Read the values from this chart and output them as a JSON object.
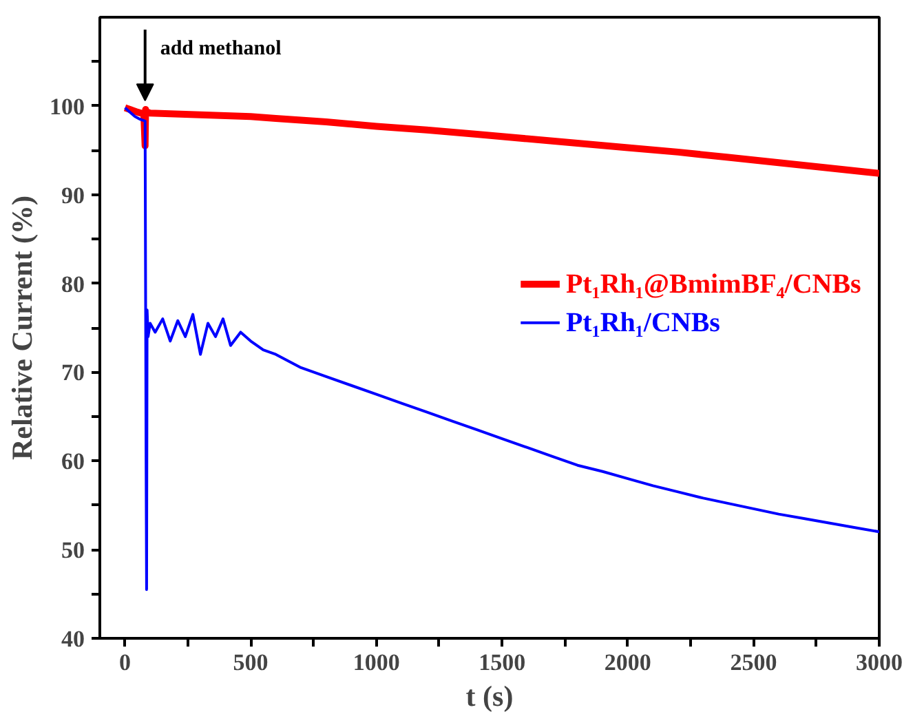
{
  "chart_data": {
    "type": "line",
    "xlabel": "t (s)",
    "ylabel": "Relative Current (%)",
    "xlim": [
      -100,
      3000
    ],
    "ylim": [
      40,
      110
    ],
    "xticks": [
      0,
      {
        "value": 250,
        "label": null
      },
      500,
      {
        "value": 750,
        "label": null
      },
      1000,
      {
        "value": 1250,
        "label": null
      },
      1500,
      {
        "value": 1750,
        "label": null
      },
      2000,
      {
        "value": 2250,
        "label": null
      },
      2500,
      {
        "value": 2750,
        "label": null
      },
      3000
    ],
    "yticks": [
      40,
      {
        "value": 45,
        "label": null
      },
      50,
      {
        "value": 55,
        "label": null
      },
      60,
      {
        "value": 65,
        "label": null
      },
      70,
      {
        "value": 75,
        "label": null
      },
      80,
      {
        "value": 85,
        "label": null
      },
      90,
      {
        "value": 95,
        "label": null
      },
      100,
      {
        "value": 105,
        "label": null
      }
    ],
    "legend": "right",
    "grid": false,
    "marker": "none",
    "line_style": "solid",
    "annotations": [
      {
        "text": "add methanol",
        "x": 80,
        "y": 100
      }
    ],
    "series": [
      {
        "name": "Pt₁Rh₁@BmimBF₄/CNBs",
        "color": "#ff0000",
        "x": [
          0,
          20,
          50,
          75,
          80,
          82,
          85,
          90,
          100,
          200,
          300,
          400,
          500,
          600,
          800,
          1000,
          1200,
          1400,
          1600,
          1800,
          2000,
          2200,
          2400,
          2600,
          2800,
          3000
        ],
        "values": [
          99.8,
          99.6,
          99.3,
          99.1,
          95.5,
          99.6,
          99.3,
          99.3,
          99.2,
          99.1,
          99.0,
          98.9,
          98.8,
          98.6,
          98.2,
          97.7,
          97.3,
          96.8,
          96.3,
          95.8,
          95.3,
          94.8,
          94.2,
          93.6,
          93.0,
          92.4
        ]
      },
      {
        "name": "Pt₁Rh₁/CNBs",
        "color": "#0000ff",
        "x": [
          0,
          20,
          40,
          60,
          80,
          84,
          86,
          88,
          92,
          100,
          120,
          150,
          180,
          210,
          240,
          270,
          300,
          330,
          360,
          390,
          420,
          460,
          500,
          550,
          600,
          700,
          800,
          900,
          1000,
          1100,
          1200,
          1300,
          1400,
          1500,
          1600,
          1700,
          1800,
          1900,
          2000,
          2100,
          2200,
          2300,
          2400,
          2500,
          2600,
          2700,
          2800,
          2900,
          3000
        ],
        "values": [
          99.8,
          99.3,
          98.8,
          98.5,
          98.3,
          60,
          45.5,
          77,
          74,
          75.5,
          74.5,
          76,
          73.5,
          75.8,
          74,
          76.5,
          72,
          75.5,
          74,
          76,
          73,
          74.5,
          73.5,
          72.5,
          72,
          70.5,
          69.5,
          68.5,
          67.5,
          66.5,
          65.5,
          64.5,
          63.5,
          62.5,
          61.5,
          60.5,
          59.5,
          58.8,
          58,
          57.2,
          56.5,
          55.8,
          55.2,
          54.6,
          54,
          53.5,
          53,
          52.5,
          52
        ]
      }
    ]
  }
}
